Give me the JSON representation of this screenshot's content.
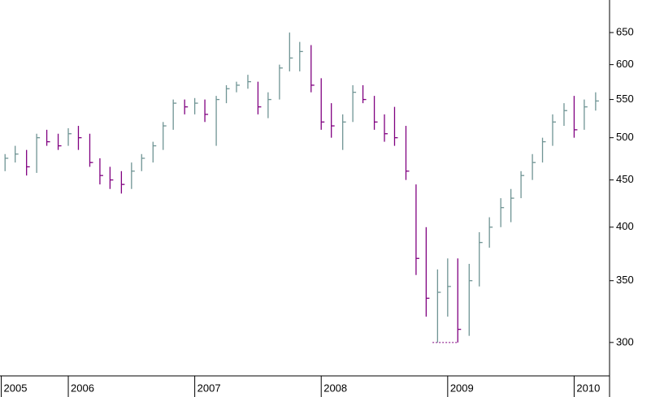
{
  "chart_data": {
    "type": "ohlc",
    "log_scale": true,
    "up_color": "#6f9494",
    "down_color": "#800080",
    "xlim": [
      2005.46,
      2010.28
    ],
    "xticks": [
      {
        "value": 2005.47,
        "label": "2005"
      },
      2006,
      2007,
      2008,
      2009,
      2010
    ],
    "ylim": [
      276,
      705
    ],
    "yticks": [
      300,
      350,
      400,
      450,
      500,
      550,
      600,
      650
    ],
    "support": {
      "value": 300,
      "x": [
        2008.88,
        2009.08
      ]
    },
    "x": [
      2005.5,
      2005.58,
      2005.67,
      2005.75,
      2005.83,
      2005.92,
      2006.0,
      2006.08,
      2006.17,
      2006.25,
      2006.33,
      2006.42,
      2006.5,
      2006.58,
      2006.67,
      2006.75,
      2006.83,
      2006.92,
      2007.0,
      2007.08,
      2007.17,
      2007.25,
      2007.33,
      2007.42,
      2007.5,
      2007.58,
      2007.67,
      2007.75,
      2007.83,
      2007.92,
      2008.0,
      2008.08,
      2008.17,
      2008.25,
      2008.33,
      2008.42,
      2008.5,
      2008.58,
      2008.67,
      2008.75,
      2008.83,
      2008.92,
      2009.0,
      2009.08,
      2009.17,
      2009.25,
      2009.33,
      2009.42,
      2009.5,
      2009.58,
      2009.67,
      2009.75,
      2009.83,
      2009.92,
      2010.0,
      2010.08,
      2010.17
    ],
    "high": [
      480,
      490,
      485,
      505,
      510,
      505,
      512,
      515,
      505,
      475,
      465,
      460,
      470,
      480,
      495,
      520,
      550,
      550,
      552,
      550,
      555,
      570,
      575,
      585,
      575,
      560,
      600,
      650,
      635,
      630,
      580,
      545,
      530,
      570,
      570,
      555,
      530,
      540,
      515,
      445,
      400,
      360,
      370,
      370,
      365,
      395,
      410,
      430,
      440,
      460,
      480,
      500,
      530,
      545,
      555,
      550,
      560
    ],
    "low": [
      460,
      470,
      455,
      458,
      490,
      485,
      490,
      485,
      465,
      445,
      440,
      435,
      440,
      460,
      470,
      485,
      510,
      530,
      530,
      520,
      490,
      545,
      560,
      565,
      530,
      525,
      550,
      590,
      590,
      560,
      510,
      500,
      485,
      520,
      545,
      510,
      495,
      490,
      450,
      355,
      320,
      300,
      320,
      300,
      305,
      345,
      380,
      400,
      405,
      430,
      450,
      470,
      490,
      515,
      500,
      510,
      535
    ],
    "close": [
      475,
      480,
      465,
      500,
      495,
      490,
      505,
      500,
      470,
      455,
      450,
      445,
      460,
      475,
      490,
      515,
      545,
      540,
      545,
      530,
      550,
      565,
      570,
      575,
      540,
      550,
      595,
      610,
      620,
      570,
      520,
      515,
      520,
      560,
      550,
      520,
      505,
      500,
      460,
      370,
      335,
      340,
      345,
      310,
      350,
      385,
      400,
      420,
      430,
      455,
      470,
      495,
      520,
      535,
      510,
      540,
      548
    ]
  }
}
